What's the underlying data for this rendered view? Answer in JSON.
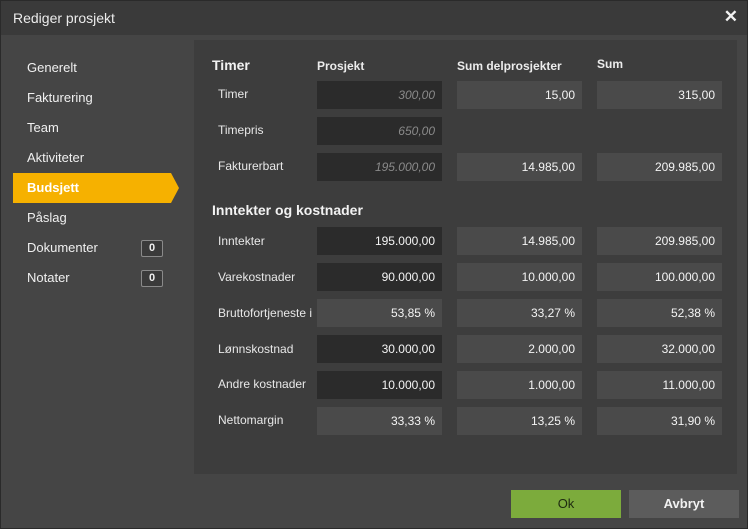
{
  "window": {
    "title": "Rediger prosjekt",
    "close_glyph": "✕"
  },
  "sidebar": {
    "items": [
      {
        "label": "Generelt"
      },
      {
        "label": "Fakturering"
      },
      {
        "label": "Team"
      },
      {
        "label": "Aktiviteter"
      },
      {
        "label": "Budsjett",
        "active": true
      },
      {
        "label": "Påslag"
      },
      {
        "label": "Dokumenter",
        "count": "0"
      },
      {
        "label": "Notater",
        "count": "0"
      }
    ]
  },
  "timer": {
    "title": "Timer",
    "col_project": "Prosjekt",
    "col_sub": "Sum delprosjekter",
    "col_sum": "Sum",
    "rows": [
      {
        "label": "Timer",
        "project_placeholder": "300,00",
        "sub": "15,00",
        "sum": "315,00"
      },
      {
        "label": "Timepris",
        "project_placeholder": "650,00"
      },
      {
        "label": "Fakturerbart",
        "project_placeholder": "195.000,00",
        "sub": "14.985,00",
        "sum": "209.985,00"
      }
    ]
  },
  "income": {
    "title": "Inntekter og kostnader",
    "rows": [
      {
        "label": "Inntekter",
        "project": "195.000,00",
        "sub": "14.985,00",
        "sum": "209.985,00"
      },
      {
        "label": "Varekostnader",
        "project": "90.000,00",
        "sub": "10.000,00",
        "sum": "100.000,00"
      },
      {
        "label": "Bruttofortjeneste i %",
        "project": "53,85 %",
        "sub": "33,27 %",
        "sum": "52,38 %"
      },
      {
        "label": "Lønnskostnad",
        "project": "30.000,00",
        "sub": "2.000,00",
        "sum": "32.000,00"
      },
      {
        "label": "Andre kostnader",
        "project": "10.000,00",
        "sub": "1.000,00",
        "sum": "11.000,00"
      },
      {
        "label": "Nettomargin",
        "project": "33,33 %",
        "sub": "13,25 %",
        "sum": "31,90 %"
      }
    ]
  },
  "footer": {
    "ok_label": "Ok",
    "cancel_label": "Avbryt"
  },
  "colors": {
    "accent": "#f6b100",
    "ok": "#7cab3c"
  }
}
